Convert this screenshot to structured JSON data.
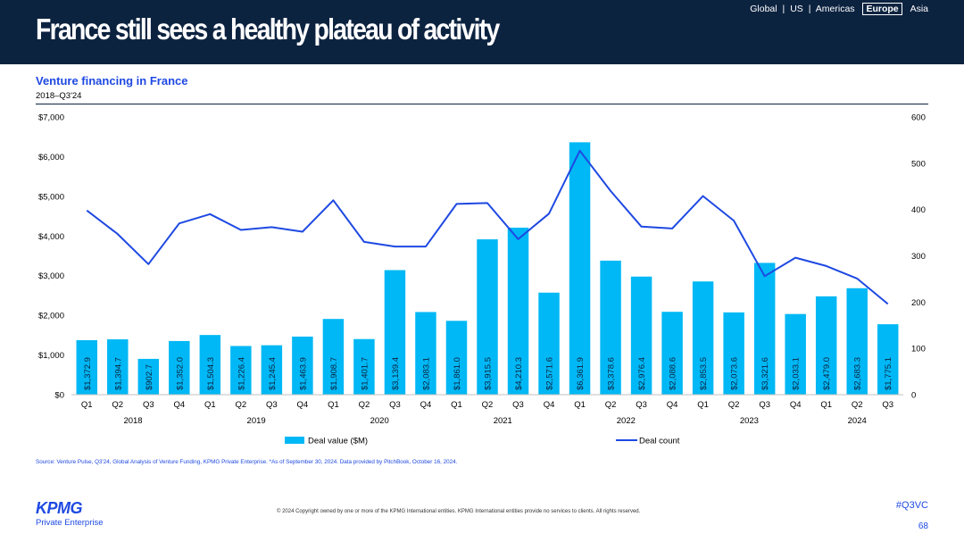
{
  "header": {
    "title": "France still sees a healthy plateau of activity",
    "nav": {
      "global": "Global",
      "us": "US",
      "americas": "Americas",
      "europe": "Europe",
      "asia": "Asia",
      "separator": "|"
    }
  },
  "chart_title": "Venture financing in France",
  "chart_subtitle": "2018–Q3'24",
  "chart_data": {
    "type": "bar",
    "title": "Venture financing in France",
    "subtitle": "2018–Q3'24",
    "quarters": [
      "Q1",
      "Q2",
      "Q3",
      "Q4",
      "Q1",
      "Q2",
      "Q3",
      "Q4",
      "Q1",
      "Q2",
      "Q3",
      "Q4",
      "Q1",
      "Q2",
      "Q3",
      "Q4",
      "Q1",
      "Q2",
      "Q3",
      "Q4",
      "Q1",
      "Q2",
      "Q3",
      "Q4",
      "Q1",
      "Q2",
      "Q3"
    ],
    "years": [
      {
        "label": "2018",
        "start": 0,
        "count": 4
      },
      {
        "label": "2019",
        "start": 4,
        "count": 4
      },
      {
        "label": "2020",
        "start": 8,
        "count": 4
      },
      {
        "label": "2021",
        "start": 12,
        "count": 4
      },
      {
        "label": "2022",
        "start": 16,
        "count": 4
      },
      {
        "label": "2023",
        "start": 20,
        "count": 4
      },
      {
        "label": "2024",
        "start": 24,
        "count": 3
      }
    ],
    "series": [
      {
        "name": "Deal value ($M)",
        "type": "bar",
        "axis": "left",
        "color": "#00b8f5",
        "values": [
          1372.9,
          1394.7,
          902.7,
          1352.0,
          1504.3,
          1226.4,
          1245.4,
          1463.9,
          1908.7,
          1401.7,
          3139.4,
          2083.1,
          1861.0,
          3915.5,
          4210.3,
          2571.6,
          6361.9,
          3378.6,
          2976.4,
          2088.6,
          2853.5,
          2073.6,
          3321.6,
          2033.1,
          2479.0,
          2683.3,
          1775.1
        ],
        "labels": [
          "$1,372.9",
          "$1,394.7",
          "$902.7",
          "$1,352.0",
          "$1,504.3",
          "$1,226.4",
          "$1,245.4",
          "$1,463.9",
          "$1,908.7",
          "$1,401.7",
          "$3,139.4",
          "$2,083.1",
          "$1,861.0",
          "$3,915.5",
          "$4,210.3",
          "$2,571.6",
          "$6,361.9",
          "$3,378.6",
          "$2,976.4",
          "$2,088.6",
          "$2,853.5",
          "$2,073.6",
          "$3,321.6",
          "$2,033.1",
          "$2,479.0",
          "$2,683.3",
          "$1,775.1"
        ]
      },
      {
        "name": "Deal count",
        "type": "line",
        "axis": "right",
        "color": "#1e49e2",
        "values": [
          398,
          347,
          282,
          370,
          390,
          356,
          362,
          352,
          420,
          330,
          320,
          320,
          412,
          414,
          336,
          391,
          527,
          440,
          363,
          359,
          429,
          376,
          256,
          296,
          278,
          251,
          196
        ]
      }
    ],
    "y_left": {
      "min": 0,
      "max": 7000,
      "ticks": [
        "$0",
        "$1,000",
        "$2,000",
        "$3,000",
        "$4,000",
        "$5,000",
        "$6,000",
        "$7,000"
      ]
    },
    "y_right": {
      "min": 0,
      "max": 600,
      "ticks": [
        "0",
        "100",
        "200",
        "300",
        "400",
        "500",
        "600"
      ]
    },
    "legend_position": "bottom",
    "legend_bar": "Deal value ($M)",
    "legend_line": "Deal count"
  },
  "source": "Source: Venture Pulse, Q3'24, Global Analysis of Venture Funding, KPMG Private Enterprise. *As of September 30, 2024. Data provided by PitchBook, October 16, 2024.",
  "footer": {
    "logo_text": "KPMG",
    "logo_sub": "Private Enterprise",
    "copyright": "© 2024 Copyright owned by one or more of the KPMG International entities. KPMG International entities provide no services to clients. All rights reserved.",
    "hashtag": "#Q3VC",
    "page_number": "68"
  },
  "colors": {
    "header_bg": "#0c2340",
    "accent_blue": "#1e49e2",
    "bar": "#00b8f5"
  }
}
